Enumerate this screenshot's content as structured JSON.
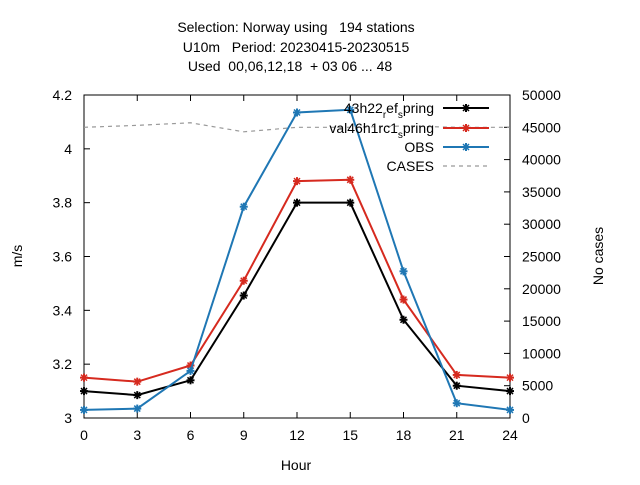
{
  "chart_data": {
    "type": "line",
    "title_lines": [
      "Selection: Norway using   194 stations",
      "U10m   Period: 20230415-20230515",
      "Used  00,06,12,18  + 03 06 ... 48"
    ],
    "xlabel": "Hour",
    "ylabel": "m/s",
    "y2label": "No cases",
    "xlim": [
      0,
      24
    ],
    "ylim": [
      3.0,
      4.2
    ],
    "y2lim": [
      0,
      50000
    ],
    "x_ticks": [
      0,
      3,
      6,
      9,
      12,
      15,
      18,
      21,
      24
    ],
    "y_ticks": [
      "3",
      "3.2",
      "3.4",
      "3.6",
      "3.8",
      "4",
      "4.2"
    ],
    "y2_ticks": [
      "0",
      "5000",
      "10000",
      "15000",
      "20000",
      "25000",
      "30000",
      "35000",
      "40000",
      "45000",
      "50000"
    ],
    "x": [
      0,
      3,
      6,
      9,
      12,
      15,
      18,
      21,
      24
    ],
    "series": [
      {
        "name_main": "43h22",
        "name_parts": [
          [
            "_",
            "r"
          ],
          [
            "",
            "ef"
          ],
          [
            "_",
            "s"
          ],
          [
            "",
            "pring"
          ]
        ],
        "axis": "y",
        "color": "#000000",
        "values": [
          3.1,
          3.085,
          3.14,
          3.455,
          3.8,
          3.8,
          3.365,
          3.12,
          3.1
        ]
      },
      {
        "name_main": "val46h1rc1",
        "name_parts": [
          [
            "_",
            "s"
          ],
          [
            "",
            "pring"
          ]
        ],
        "axis": "y",
        "color": "#d62a1f",
        "values": [
          3.15,
          3.135,
          3.195,
          3.51,
          3.88,
          3.885,
          3.44,
          3.16,
          3.15
        ]
      },
      {
        "name_main": "OBS",
        "name_parts": [],
        "axis": "y",
        "color": "#1f77b4",
        "values": [
          3.03,
          3.035,
          3.175,
          3.785,
          4.135,
          4.145,
          3.545,
          3.055,
          3.03
        ]
      },
      {
        "name_main": "CASES",
        "name_parts": [],
        "axis": "y2",
        "color": "#999999",
        "dashed": true,
        "values": [
          45000,
          45300,
          45700,
          44300,
          45000,
          45000,
          45200,
          45000,
          45000
        ]
      }
    ],
    "grid": false,
    "legend_position": "top-right"
  }
}
